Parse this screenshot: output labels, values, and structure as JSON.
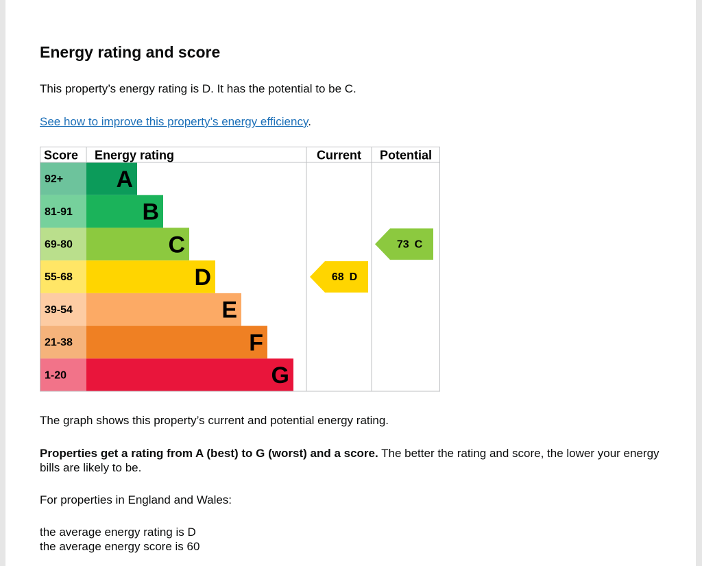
{
  "heading": "Energy rating and score",
  "summary": "This property’s energy rating is D. It has the potential to be C.",
  "link": {
    "text": "See how to improve this property’s energy efficiency",
    "suffix": "."
  },
  "graph": {
    "headers": [
      "Score",
      "Energy rating",
      "Current",
      "Potential"
    ],
    "bands": [
      {
        "score": "92+",
        "letter": "A",
        "color": "#0c9b5a"
      },
      {
        "score": "81-91",
        "letter": "B",
        "color": "#1bb35a"
      },
      {
        "score": "69-80",
        "letter": "C",
        "color": "#8cc93f"
      },
      {
        "score": "55-68",
        "letter": "D",
        "color": "#ffd500"
      },
      {
        "score": "39-54",
        "letter": "E",
        "color": "#fcaa65"
      },
      {
        "score": "21-38",
        "letter": "F",
        "color": "#ef8023"
      },
      {
        "score": "1-20",
        "letter": "G",
        "color": "#e9153b"
      }
    ],
    "current": {
      "score": 68,
      "rating": "D"
    },
    "potential": {
      "score": 73,
      "rating": "C"
    }
  },
  "notes": {
    "graph_caption": "The graph shows this property’s current and potential energy rating.",
    "rating_bold": "Properties get a rating from A (best) to G (worst) and a score.",
    "rating_rest": " The better the rating and score, the lower your energy bills are likely to be.",
    "region": "For properties in England and Wales:",
    "average_rating": "the average energy rating is D",
    "average_score": "the average energy score is 60"
  }
}
